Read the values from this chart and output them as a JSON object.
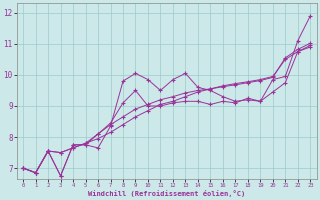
{
  "xlabel": "Windchill (Refroidissement éolien,°C)",
  "bg_color": "#cce8e8",
  "line_color": "#993399",
  "grid_color": "#99cccc",
  "xlim": [
    -0.5,
    23.5
  ],
  "ylim": [
    6.65,
    12.3
  ],
  "xticks": [
    0,
    1,
    2,
    3,
    4,
    5,
    6,
    7,
    8,
    9,
    10,
    11,
    12,
    13,
    14,
    15,
    16,
    17,
    18,
    19,
    20,
    21,
    22,
    23
  ],
  "yticks": [
    7,
    8,
    9,
    10,
    11,
    12
  ],
  "line1_x": [
    0,
    1,
    2,
    3,
    4,
    5,
    6,
    7,
    8,
    9,
    10,
    11,
    12,
    13,
    14,
    15,
    16,
    17,
    18,
    19,
    20,
    21,
    22,
    23
  ],
  "line1_y": [
    7.0,
    6.85,
    7.55,
    6.75,
    7.75,
    7.75,
    7.65,
    8.35,
    9.8,
    10.05,
    9.85,
    9.5,
    9.85,
    10.05,
    9.6,
    9.5,
    9.3,
    9.15,
    9.2,
    9.15,
    9.85,
    9.95,
    11.1,
    11.9
  ],
  "line2_x": [
    0,
    1,
    2,
    3,
    4,
    5,
    6,
    7,
    8,
    9,
    10,
    11,
    12,
    13,
    14,
    15,
    16,
    17,
    18,
    19,
    20,
    21,
    22,
    23
  ],
  "line2_y": [
    7.0,
    6.85,
    7.55,
    6.75,
    7.75,
    7.75,
    8.1,
    8.45,
    9.1,
    9.5,
    9.0,
    9.0,
    9.1,
    9.15,
    9.15,
    9.05,
    9.15,
    9.1,
    9.25,
    9.15,
    9.45,
    9.75,
    10.75,
    10.9
  ],
  "line3_x": [
    0,
    1,
    2,
    3,
    4,
    5,
    6,
    7,
    8,
    9,
    10,
    11,
    12,
    13,
    14,
    15,
    16,
    17,
    18,
    19,
    20,
    21,
    22,
    23
  ],
  "line3_y": [
    7.0,
    6.85,
    7.55,
    7.5,
    7.65,
    7.8,
    7.95,
    8.15,
    8.4,
    8.65,
    8.85,
    9.05,
    9.15,
    9.3,
    9.45,
    9.55,
    9.65,
    9.72,
    9.78,
    9.85,
    9.95,
    10.5,
    10.75,
    10.95
  ],
  "line4_x": [
    0,
    1,
    2,
    3,
    4,
    5,
    6,
    7,
    8,
    9,
    10,
    11,
    12,
    13,
    14,
    15,
    16,
    17,
    18,
    19,
    20,
    21,
    22,
    23
  ],
  "line4_y": [
    7.0,
    6.85,
    7.55,
    7.5,
    7.65,
    7.8,
    8.1,
    8.4,
    8.65,
    8.9,
    9.05,
    9.2,
    9.3,
    9.42,
    9.5,
    9.55,
    9.62,
    9.68,
    9.75,
    9.82,
    9.92,
    10.55,
    10.82,
    11.02
  ]
}
